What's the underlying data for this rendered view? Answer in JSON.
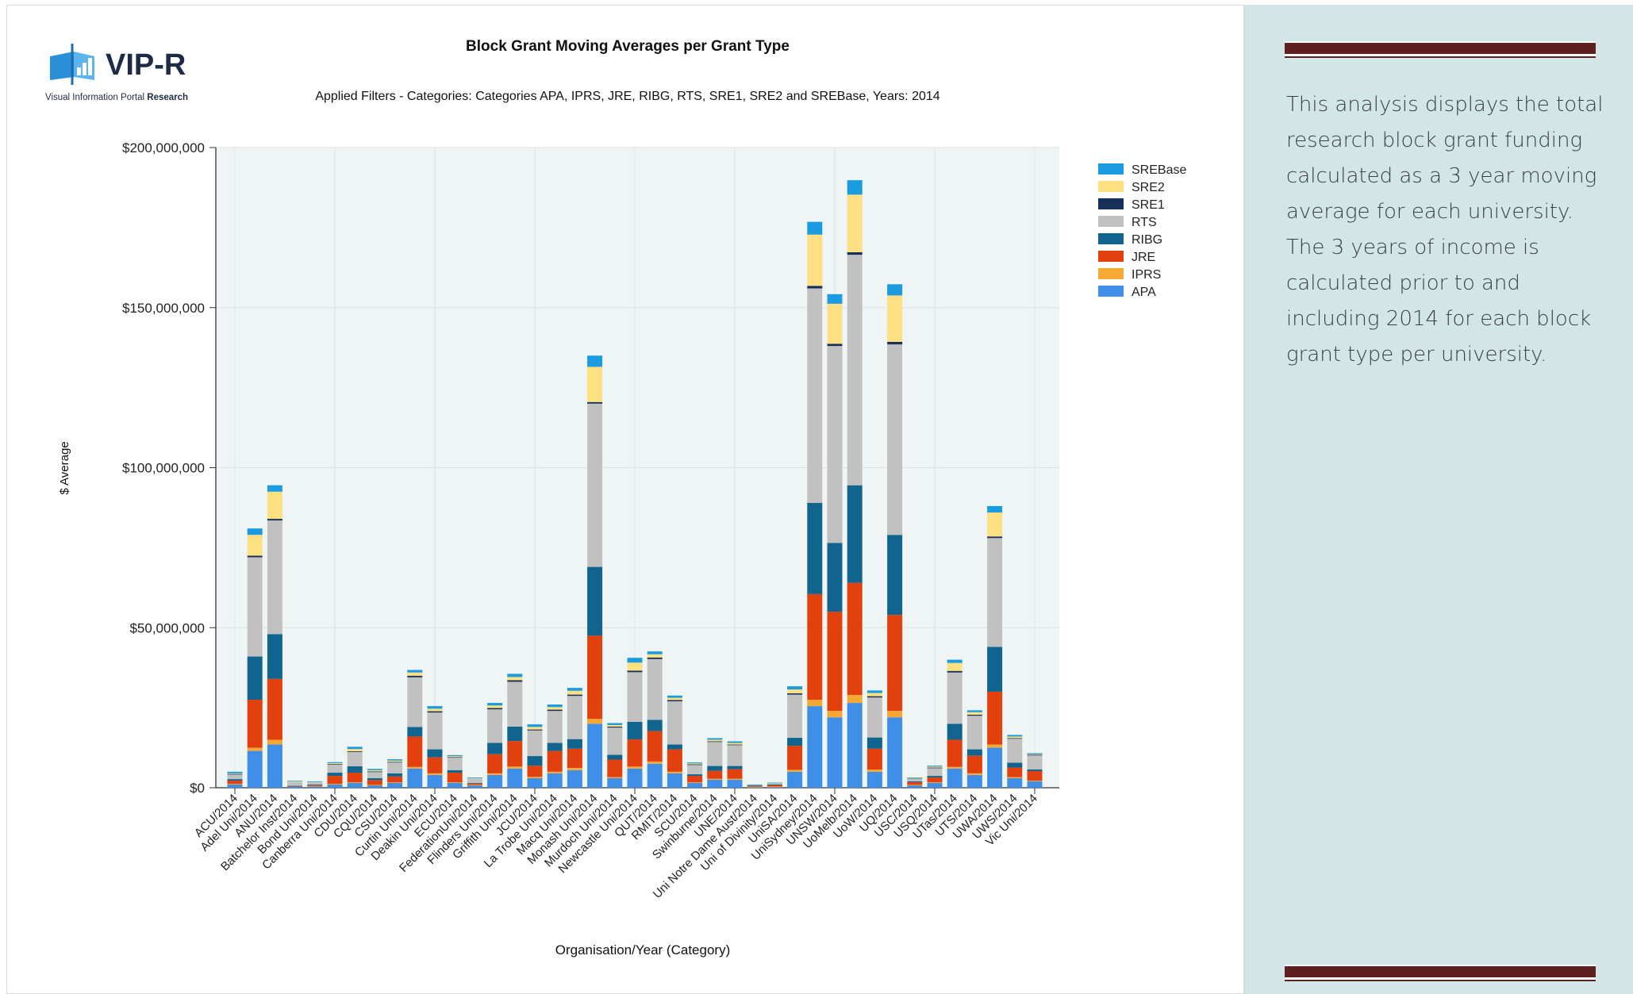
{
  "logo": {
    "name": "VIP-R",
    "tagline_prefix": "Visual Information Portal",
    "tagline_bold": "Research"
  },
  "description": "This analysis displays the total research block grant funding calculated as a 3 year moving average for each university. The 3 years of income is calculated prior to and including 2014 for each block grant type per university.",
  "colors": {
    "SREBase": "#1b9be0",
    "SRE2": "#fde082",
    "SRE1": "#17305a",
    "RTS": "#c1c1c1",
    "RIBG": "#10648e",
    "JRE": "#e2410e",
    "IPRS": "#f5a833",
    "APA": "#3f8ee8",
    "plot_bg": "#eef5f4",
    "side_bg": "#d3e6e6",
    "rule": "#5e1f1f"
  },
  "chart_data": {
    "type": "bar",
    "stacked": true,
    "title": "Block Grant Moving Averages per Grant Type",
    "subtitle": "Applied Filters - Categories: Categories APA, IPRS, JRE, RIBG, RTS, SRE1, SRE2 and SREBase, Years: 2014",
    "xlabel": "Organisation/Year (Category)",
    "ylabel": "$ Average",
    "ylim": [
      0,
      200000000
    ],
    "yticks": [
      0,
      50000000,
      100000000,
      150000000,
      200000000
    ],
    "ytick_labels": [
      "$0",
      "$50,000,000",
      "$100,000,000",
      "$150,000,000",
      "$200,000,000"
    ],
    "grid": true,
    "legend_position": "top-right",
    "categories": [
      "ACU/2014",
      "Adel Uni/2014",
      "ANU/2014",
      "Batchelor Inst/2014",
      "Bond Uni/2014",
      "Canberra Uni/2014",
      "CDU/2014",
      "CQU/2014",
      "CSU/2014",
      "Curtin Uni/2014",
      "Deakin Uni/2014",
      "ECU/2014",
      "FederationUni/2014",
      "Flinders Uni/2014",
      "Griffith Uni/2014",
      "JCU/2014",
      "La Trobe Uni/2014",
      "Macq Uni/2014",
      "Monash Uni/2014",
      "Murdoch Uni/2014",
      "Newcastle Uni/2014",
      "QUT/2014",
      "RMIT/2014",
      "SCU/2014",
      "Swinburne/2014",
      "UNE/2014",
      "Uni Notre Dame Aust/2014",
      "Uni of Divinity/2014",
      "UniSA/2014",
      "UniSydney/2014",
      "UNSW/2014",
      "UoMelb/2014",
      "UoW/2014",
      "UQ/2014",
      "USC/2014",
      "USQ/2014",
      "UTas/2014",
      "UTS/2014",
      "UWA/2014",
      "UWS/2014",
      "Vic Uni/2014"
    ],
    "series": [
      {
        "name": "APA",
        "values": [
          1.0,
          11.5,
          13.5,
          0.3,
          0.5,
          1.0,
          1.5,
          0.8,
          1.5,
          6.0,
          4.0,
          1.5,
          0.8,
          4.0,
          6.0,
          3.0,
          4.5,
          5.5,
          20.0,
          3.0,
          6.0,
          7.5,
          4.5,
          1.5,
          2.5,
          2.5,
          0.2,
          0.2,
          5.0,
          25.5,
          22.0,
          26.5,
          5.0,
          22.0,
          0.8,
          1.5,
          6.0,
          4.0,
          12.5,
          3.0,
          2.0
        ]
      },
      {
        "name": "IPRS",
        "values": [
          0.2,
          1.0,
          1.5,
          0.0,
          0.1,
          0.2,
          0.2,
          0.1,
          0.2,
          0.5,
          0.5,
          0.2,
          0.1,
          0.5,
          0.6,
          0.4,
          0.5,
          0.7,
          1.5,
          0.3,
          0.6,
          0.7,
          0.5,
          0.2,
          0.3,
          0.3,
          0.1,
          0.2,
          0.6,
          2.0,
          2.0,
          2.5,
          0.7,
          2.0,
          0.1,
          0.2,
          0.5,
          0.5,
          1.0,
          0.3,
          0.2
        ]
      },
      {
        "name": "JRE",
        "values": [
          1.0,
          15.0,
          19.0,
          0.2,
          0.3,
          2.5,
          3.0,
          1.5,
          1.8,
          9.5,
          5.0,
          3.0,
          0.4,
          6.0,
          8.0,
          3.5,
          6.5,
          6.0,
          26.0,
          5.5,
          8.5,
          9.5,
          7.0,
          2.0,
          2.5,
          3.0,
          0.3,
          0.5,
          7.5,
          33.0,
          31.0,
          35.0,
          6.5,
          30.0,
          0.8,
          1.5,
          8.5,
          5.5,
          16.5,
          3.0,
          3.0
        ]
      },
      {
        "name": "RIBG",
        "values": [
          0.5,
          13.5,
          14.0,
          0.1,
          0.1,
          1.0,
          2.0,
          0.6,
          1.0,
          3.0,
          2.5,
          0.8,
          0.2,
          3.5,
          4.5,
          3.0,
          2.5,
          3.0,
          21.5,
          1.5,
          5.5,
          3.5,
          1.5,
          0.5,
          1.5,
          1.0,
          0.1,
          0.1,
          2.5,
          28.5,
          21.5,
          30.5,
          3.5,
          25.0,
          0.3,
          0.5,
          5.0,
          2.0,
          14.0,
          1.5,
          0.5
        ]
      },
      {
        "name": "RTS",
        "values": [
          1.5,
          31.0,
          35.5,
          1.3,
          0.8,
          2.5,
          4.5,
          2.0,
          3.5,
          15.5,
          11.5,
          4.0,
          1.5,
          10.5,
          14.0,
          8.0,
          10.0,
          13.5,
          51.0,
          8.5,
          15.5,
          19.0,
          13.5,
          3.0,
          7.5,
          6.5,
          0.2,
          0.4,
          13.5,
          67.0,
          61.5,
          72.0,
          12.5,
          59.5,
          0.8,
          2.5,
          16.0,
          10.5,
          34.0,
          7.5,
          4.5
        ]
      },
      {
        "name": "SRE1",
        "values": [
          0.1,
          0.5,
          0.5,
          0.0,
          0.0,
          0.2,
          0.2,
          0.1,
          0.1,
          0.5,
          0.4,
          0.1,
          0.0,
          0.4,
          0.5,
          0.3,
          0.4,
          0.4,
          0.5,
          0.3,
          0.5,
          0.5,
          0.4,
          0.1,
          0.2,
          0.2,
          0.0,
          0.0,
          0.4,
          0.8,
          0.7,
          0.8,
          0.4,
          0.8,
          0.1,
          0.1,
          0.5,
          0.3,
          0.5,
          0.2,
          0.1
        ]
      },
      {
        "name": "SRE2",
        "values": [
          0.2,
          6.5,
          8.5,
          0.1,
          0.1,
          0.3,
          0.7,
          0.4,
          0.4,
          1.0,
          0.8,
          0.3,
          0.1,
          0.8,
          1.0,
          0.8,
          0.8,
          1.2,
          11.0,
          0.5,
          2.5,
          1.0,
          0.7,
          0.3,
          0.5,
          0.5,
          0.0,
          0.1,
          1.2,
          16.0,
          12.5,
          18.0,
          1.0,
          14.5,
          0.1,
          0.3,
          2.5,
          0.8,
          7.5,
          0.5,
          0.2
        ]
      },
      {
        "name": "SREBase",
        "values": [
          0.5,
          2.0,
          2.0,
          0.2,
          0.1,
          0.3,
          0.7,
          0.4,
          0.4,
          0.8,
          0.8,
          0.3,
          0.1,
          0.8,
          1.0,
          0.8,
          0.8,
          0.9,
          3.5,
          0.6,
          1.5,
          0.9,
          0.7,
          0.3,
          0.5,
          0.5,
          0.1,
          0.1,
          1.0,
          4.0,
          3.0,
          4.5,
          0.8,
          3.5,
          0.2,
          0.3,
          1.0,
          0.6,
          2.0,
          0.5,
          0.3
        ]
      }
    ],
    "value_unit": "$ millions"
  }
}
